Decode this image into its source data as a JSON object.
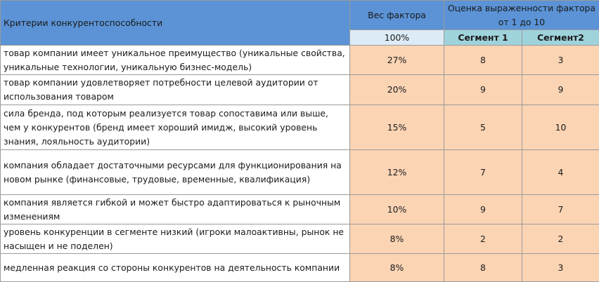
{
  "header": {
    "criteria_title": "Критерии конкурентоспособности",
    "weight_title": "Вес фактора",
    "weight_total": "100%",
    "score_title": "Оценка выраженности фактора от 1 до 10",
    "segment1": "Сегмент 1",
    "segment2": "Сегмент2"
  },
  "rows": [
    {
      "criterion": "товар компании имеет уникальное преимущество  (уникальные свойства, уникальные технологии, уникальную бизнес-модель)",
      "weight": "27%",
      "s1": "8",
      "s2": "3"
    },
    {
      "criterion": "товар компании удовлетворяет потребности целевой аудитории от использования товаром",
      "weight": "20%",
      "s1": "9",
      "s2": "9"
    },
    {
      "criterion": "сила бренда, под которым реализуется товар сопоставима или выше, чем у конкурентов  (бренд имеет хороший имидж, высокий уровень знания, лояльность аудитории)",
      "weight": "15%",
      "s1": "5",
      "s2": "10"
    },
    {
      "criterion": "компания обладает достаточными ресурсами для функционирования на новом рынке (финансовые, трудовые, временные, квалификация)",
      "weight": "12%",
      "s1": "7",
      "s2": "4"
    },
    {
      "criterion": "компания является гибкой и может быстро адаптироваться к рыночным изменениям",
      "weight": "10%",
      "s1": "9",
      "s2": "7"
    },
    {
      "criterion": "уровень конкуренции в сегменте низкий (игроки малоактивны, рынок не насыщен и не поделен)",
      "weight": "8%",
      "s1": "2",
      "s2": "2"
    },
    {
      "criterion": "медленная реакция со стороны конкурентов на деятельность компании",
      "weight": "8%",
      "s1": "8",
      "s2": "3"
    }
  ]
}
